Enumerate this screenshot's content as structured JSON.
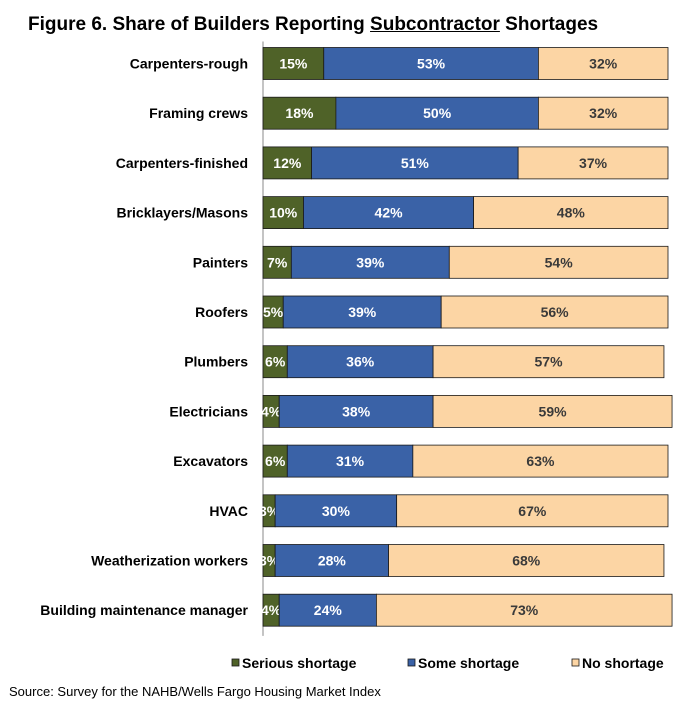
{
  "title": {
    "prefix": "Figure 6. Share of Builders Reporting ",
    "emphasis": "Subcontractor",
    "suffix": " Shortages"
  },
  "source": "Source: Survey for the NAHB/Wells Fargo Housing Market Index",
  "chart_data": {
    "type": "bar",
    "orientation": "horizontal",
    "stacked": true,
    "percent_stacked": true,
    "title": "Figure 6. Share of Builders Reporting Subcontractor Shortages",
    "categories": [
      "Carpenters-rough",
      "Framing crews",
      "Carpenters-finished",
      "Bricklayers/Masons",
      "Painters",
      "Roofers",
      "Plumbers",
      "Electricians",
      "Excavators",
      "HVAC",
      "Weatherization workers",
      "Building maintenance manager"
    ],
    "series": [
      {
        "name": "Serious shortage",
        "color": "#4f6228",
        "values": [
          15,
          18,
          12,
          10,
          7,
          5,
          6,
          4,
          6,
          3,
          3,
          4
        ]
      },
      {
        "name": "Some shortage",
        "color": "#3a62a7",
        "values": [
          53,
          50,
          51,
          42,
          39,
          39,
          36,
          38,
          31,
          30,
          28,
          24
        ]
      },
      {
        "name": "No shortage",
        "color": "#fcd5a4",
        "values": [
          32,
          32,
          37,
          48,
          54,
          56,
          57,
          59,
          63,
          67,
          68,
          73
        ]
      }
    ],
    "value_suffix": "%",
    "xlim": [
      0,
      100
    ],
    "legend_position": "bottom",
    "gridlines": false
  }
}
